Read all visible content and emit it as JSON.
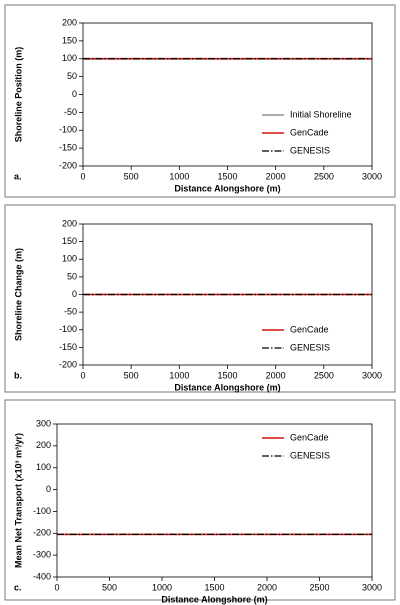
{
  "chart_data": [
    {
      "type": "line",
      "panel_label": "a.",
      "xlabel": "Distance Alongshore (m)",
      "ylabel": "Shoreline Position (m)",
      "x": [
        0,
        3000
      ],
      "xlim": [
        0,
        3000
      ],
      "xticks": [
        0,
        500,
        1000,
        1500,
        2000,
        2500,
        3000
      ],
      "ylim": [
        -200,
        200
      ],
      "yticks": [
        -200,
        -150,
        -100,
        -50,
        0,
        50,
        100,
        150,
        200
      ],
      "legend": "center right",
      "series": [
        {
          "name": "Initial Shoreline",
          "color": "#a0a0a0",
          "linestyle": "solid",
          "values": [
            100,
            100
          ]
        },
        {
          "name": "GenCade",
          "color": "#d9342b",
          "linestyle": "solid",
          "values": [
            100,
            100
          ]
        },
        {
          "name": "GENESIS",
          "color": "#000000",
          "linestyle": "dashdot",
          "values": [
            100,
            100
          ]
        }
      ]
    },
    {
      "type": "line",
      "panel_label": "b.",
      "xlabel": "Distance Alongshore (m)",
      "ylabel": "Shoreline Change (m)",
      "x": [
        0,
        3000
      ],
      "xlim": [
        0,
        3000
      ],
      "xticks": [
        0,
        500,
        1000,
        1500,
        2000,
        2500,
        3000
      ],
      "ylim": [
        -200,
        200
      ],
      "yticks": [
        -200,
        -150,
        -100,
        -50,
        0,
        50,
        100,
        150,
        200
      ],
      "legend": "lower right",
      "series": [
        {
          "name": "GenCade",
          "color": "#d9342b",
          "linestyle": "solid",
          "values": [
            0,
            0
          ]
        },
        {
          "name": "GENESIS",
          "color": "#000000",
          "linestyle": "dashdot",
          "values": [
            0,
            0
          ]
        }
      ]
    },
    {
      "type": "line",
      "panel_label": "c.",
      "xlabel": "Distance Alongshore (m)",
      "ylabel": "Mean Net Transport (x10³ m³/yr)",
      "x": [
        0,
        3000
      ],
      "xlim": [
        0,
        3000
      ],
      "xticks": [
        0,
        500,
        1000,
        1500,
        2000,
        2500,
        3000
      ],
      "ylim": [
        -400,
        300
      ],
      "yticks": [
        -400,
        -300,
        -200,
        -100,
        0,
        100,
        200,
        300
      ],
      "legend": "upper right",
      "series": [
        {
          "name": "GenCade",
          "color": "#d9342b",
          "linestyle": "solid",
          "values": [
            -205,
            -205
          ]
        },
        {
          "name": "GENESIS",
          "color": "#000000",
          "linestyle": "dashdot",
          "values": [
            -205,
            -205
          ]
        }
      ]
    }
  ]
}
